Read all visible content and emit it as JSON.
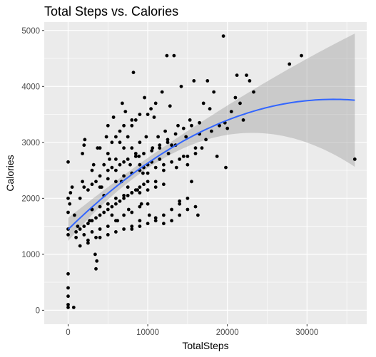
{
  "chart_data": {
    "type": "scatter",
    "title": "Total Steps vs. Calories",
    "xlabel": "TotalSteps",
    "ylabel": "Calories",
    "xlim": [
      -3000,
      37500
    ],
    "ylim": [
      -250,
      5150
    ],
    "x_ticks": [
      0,
      10000,
      20000,
      30000
    ],
    "x_tick_labels": [
      "0",
      "10000",
      "20000",
      "30000"
    ],
    "y_ticks": [
      0,
      1000,
      2000,
      3000,
      4000,
      5000
    ],
    "y_tick_labels": [
      "0",
      "1000",
      "2000",
      "3000",
      "4000",
      "5000"
    ],
    "grid": true,
    "panel_background": "#ebebeb",
    "grid_color": "#ffffff",
    "point_color": "#000000",
    "smooth_color": "#3366ff",
    "band_color": "#999999",
    "points": [
      [
        0,
        2650
      ],
      [
        0,
        2000
      ],
      [
        0,
        1750
      ],
      [
        0,
        1450
      ],
      [
        0,
        1350
      ],
      [
        0,
        650
      ],
      [
        0,
        400
      ],
      [
        0,
        250
      ],
      [
        0,
        100
      ],
      [
        0,
        50
      ],
      [
        700,
        50
      ],
      [
        200,
        1900
      ],
      [
        300,
        2100
      ],
      [
        500,
        2200
      ],
      [
        800,
        1700
      ],
      [
        1000,
        1300
      ],
      [
        1200,
        1500
      ],
      [
        1500,
        2000
      ],
      [
        1800,
        2300
      ],
      [
        2000,
        2950
      ],
      [
        2100,
        3050
      ],
      [
        1800,
        2800
      ],
      [
        2500,
        1200
      ],
      [
        2700,
        1600
      ],
      [
        3000,
        1800
      ],
      [
        3200,
        2600
      ],
      [
        3400,
        1000
      ],
      [
        3500,
        740
      ],
      [
        3600,
        880
      ],
      [
        3700,
        2900
      ],
      [
        4000,
        2400
      ],
      [
        4200,
        2200
      ],
      [
        4500,
        2050
      ],
      [
        4800,
        3100
      ],
      [
        5000,
        1900
      ],
      [
        5000,
        3300
      ],
      [
        5200,
        2700
      ],
      [
        5500,
        1700
      ],
      [
        5700,
        3450
      ],
      [
        6000,
        2500
      ],
      [
        6200,
        1600
      ],
      [
        6500,
        3000
      ],
      [
        6700,
        2300
      ],
      [
        6800,
        3700
      ],
      [
        7000,
        2900
      ],
      [
        7200,
        3550
      ],
      [
        7500,
        2200
      ],
      [
        7600,
        1800
      ],
      [
        7800,
        2600
      ],
      [
        8000,
        3300
      ],
      [
        8200,
        4250
      ],
      [
        8500,
        3400
      ],
      [
        8700,
        2150
      ],
      [
        8900,
        2750
      ],
      [
        9000,
        3000
      ],
      [
        9200,
        1900
      ],
      [
        9400,
        2450
      ],
      [
        9600,
        3800
      ],
      [
        9800,
        3100
      ],
      [
        10000,
        2600
      ],
      [
        10200,
        1700
      ],
      [
        10400,
        3600
      ],
      [
        10600,
        2900
      ],
      [
        10800,
        3450
      ],
      [
        11000,
        2300
      ],
      [
        11300,
        3100
      ],
      [
        11500,
        2700
      ],
      [
        11800,
        3900
      ],
      [
        12000,
        2500
      ],
      [
        12200,
        3200
      ],
      [
        12400,
        4550
      ],
      [
        12600,
        2800
      ],
      [
        12800,
        3650
      ],
      [
        13000,
        2950
      ],
      [
        13300,
        4550
      ],
      [
        13600,
        2550
      ],
      [
        13800,
        3300
      ],
      [
        14000,
        1950
      ],
      [
        14200,
        4000
      ],
      [
        14500,
        2750
      ],
      [
        14800,
        3100
      ],
      [
        15000,
        2600
      ],
      [
        15300,
        3400
      ],
      [
        15500,
        2300
      ],
      [
        15800,
        4100
      ],
      [
        16000,
        2900
      ],
      [
        16300,
        1700
      ],
      [
        16500,
        3150
      ],
      [
        16800,
        2900
      ],
      [
        17000,
        3700
      ],
      [
        17300,
        3050
      ],
      [
        17500,
        4100
      ],
      [
        17800,
        3600
      ],
      [
        18000,
        3200
      ],
      [
        18300,
        3900
      ],
      [
        18700,
        2750
      ],
      [
        19000,
        3300
      ],
      [
        19500,
        4900
      ],
      [
        19700,
        3350
      ],
      [
        20000,
        3250
      ],
      [
        20500,
        3550
      ],
      [
        21000,
        3800
      ],
      [
        21200,
        4200
      ],
      [
        21600,
        3700
      ],
      [
        22000,
        3400
      ],
      [
        22400,
        4200
      ],
      [
        22800,
        4100
      ],
      [
        23300,
        3900
      ],
      [
        27800,
        4400
      ],
      [
        29300,
        4550
      ],
      [
        36000,
        2700
      ],
      [
        19800,
        2550
      ],
      [
        4000,
        2900
      ],
      [
        5000,
        2800
      ],
      [
        6000,
        2700
      ],
      [
        7000,
        2650
      ],
      [
        8000,
        2900
      ],
      [
        9000,
        2600
      ],
      [
        3000,
        2500
      ],
      [
        4500,
        2600
      ],
      [
        5500,
        3000
      ],
      [
        6500,
        3200
      ],
      [
        7500,
        3100
      ],
      [
        8500,
        2800
      ],
      [
        9500,
        2550
      ],
      [
        10500,
        2650
      ],
      [
        11500,
        2900
      ],
      [
        12500,
        3000
      ],
      [
        13500,
        2950
      ],
      [
        6000,
        3100
      ],
      [
        7000,
        3300
      ],
      [
        8000,
        3400
      ],
      [
        9000,
        3500
      ],
      [
        10000,
        3500
      ],
      [
        11000,
        3700
      ],
      [
        2000,
        2200
      ],
      [
        2500,
        2150
      ],
      [
        3000,
        2250
      ],
      [
        3500,
        2300
      ],
      [
        4000,
        2200
      ],
      [
        5000,
        2350
      ],
      [
        6000,
        2300
      ],
      [
        7000,
        2400
      ],
      [
        8000,
        2450
      ],
      [
        9000,
        2500
      ],
      [
        10000,
        2450
      ],
      [
        11000,
        2550
      ],
      [
        12000,
        2600
      ],
      [
        13000,
        2650
      ],
      [
        14000,
        2700
      ],
      [
        15000,
        2750
      ],
      [
        16000,
        2800
      ],
      [
        1000,
        1400
      ],
      [
        1500,
        1450
      ],
      [
        2000,
        1500
      ],
      [
        2500,
        1550
      ],
      [
        3000,
        1600
      ],
      [
        3500,
        1650
      ],
      [
        4000,
        1700
      ],
      [
        4500,
        1750
      ],
      [
        5000,
        1800
      ],
      [
        5500,
        1850
      ],
      [
        6000,
        1900
      ],
      [
        6500,
        1950
      ],
      [
        7000,
        2000
      ],
      [
        7500,
        2050
      ],
      [
        8000,
        2100
      ],
      [
        8500,
        2150
      ],
      [
        9000,
        2200
      ],
      [
        9500,
        2250
      ],
      [
        10000,
        2300
      ],
      [
        3000,
        1800
      ],
      [
        4000,
        1850
      ],
      [
        5000,
        1900
      ],
      [
        6000,
        2000
      ],
      [
        7000,
        2050
      ],
      [
        8000,
        2100
      ],
      [
        9000,
        2100
      ],
      [
        10000,
        2150
      ],
      [
        11000,
        2200
      ],
      [
        12000,
        2250
      ],
      [
        5000,
        1500
      ],
      [
        6000,
        1600
      ],
      [
        7000,
        1700
      ],
      [
        8000,
        1750
      ],
      [
        9000,
        1850
      ],
      [
        10000,
        1900
      ],
      [
        11000,
        1600
      ],
      [
        12000,
        1700
      ],
      [
        13000,
        1800
      ],
      [
        14000,
        1900
      ],
      [
        15000,
        2000
      ],
      [
        8000,
        1450
      ],
      [
        9000,
        1500
      ],
      [
        10000,
        1550
      ],
      [
        11000,
        1650
      ],
      [
        12000,
        1550
      ],
      [
        13000,
        1600
      ],
      [
        14000,
        1700
      ],
      [
        15000,
        1800
      ],
      [
        16000,
        1850
      ],
      [
        5000,
        2500
      ],
      [
        5500,
        2550
      ],
      [
        6500,
        2600
      ],
      [
        7500,
        2700
      ],
      [
        8500,
        2750
      ],
      [
        9500,
        2800
      ],
      [
        10500,
        2850
      ],
      [
        11500,
        2950
      ],
      [
        12500,
        3050
      ],
      [
        13500,
        3150
      ],
      [
        14500,
        3250
      ],
      [
        15500,
        3300
      ],
      [
        16500,
        3350
      ],
      [
        4000,
        1300
      ],
      [
        5000,
        1350
      ],
      [
        6000,
        1400
      ],
      [
        7000,
        1450
      ],
      [
        8000,
        1500
      ],
      [
        9000,
        1600
      ],
      [
        2000,
        1350
      ],
      [
        3000,
        1400
      ],
      [
        4000,
        1450
      ],
      [
        1500,
        1150
      ],
      [
        2500,
        1250
      ],
      [
        3500,
        1300
      ]
    ]
  }
}
